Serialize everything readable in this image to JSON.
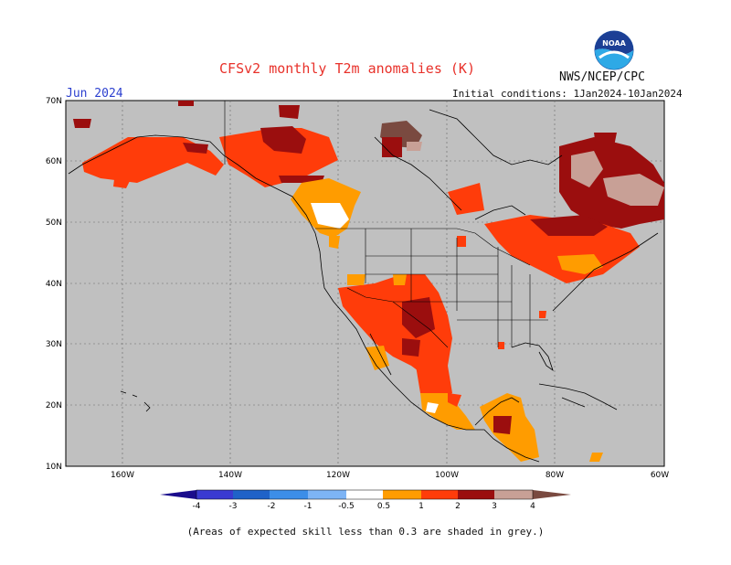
{
  "header": {
    "title": "CFSv2 monthly T2m anomalies (K)",
    "agency": "NWS/NCEP/CPC",
    "month": "Jun 2024",
    "initial_conditions": "Initial conditions: 1Jan2024-10Jan2024"
  },
  "logo": {
    "icon": "noaa-logo-icon",
    "text": "NOAA"
  },
  "map": {
    "lat_labels": [
      "70N",
      "60N",
      "50N",
      "40N",
      "30N",
      "20N",
      "10N"
    ],
    "lon_labels": [
      "160W",
      "140W",
      "120W",
      "100W",
      "80W",
      "60W"
    ],
    "background_color": "#c0c0c0"
  },
  "colorbar": {
    "labels": [
      "-4",
      "-3",
      "-2",
      "-1",
      "-0.5",
      "0.5",
      "1",
      "2",
      "3",
      "4"
    ],
    "colors": [
      "#1a0c8c",
      "#3a3ad1",
      "#1f62c8",
      "#3c8ee8",
      "#7db4f5",
      "#ffffff",
      "#ff9c00",
      "#ff3c0a",
      "#ee2800",
      "#9b0e0e",
      "#c8a096",
      "#7a4a40"
    ]
  },
  "footnote": "(Areas of expected skill less than 0.3 are shaded in grey.)"
}
